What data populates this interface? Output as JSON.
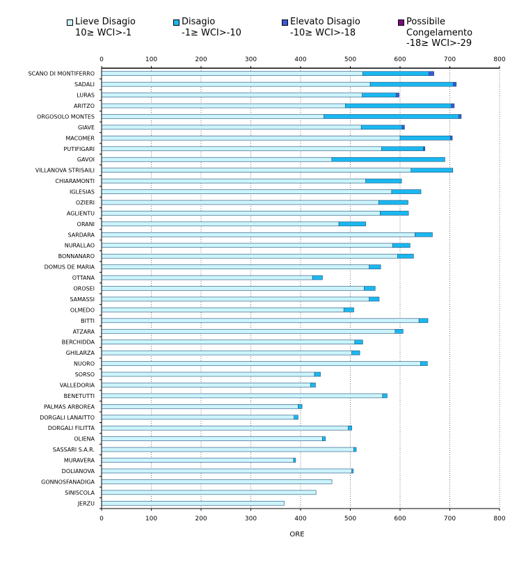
{
  "chart_data": {
    "type": "bar",
    "orientation": "horizontal",
    "stacked": true,
    "xlabel": "ORE",
    "xlim": [
      0,
      800
    ],
    "xticks": [
      0,
      100,
      200,
      300,
      400,
      500,
      600,
      700,
      800
    ],
    "grid": "vertical dotted",
    "legend": [
      {
        "name": "Lieve Disagio",
        "range": "10≥ WCI>-1",
        "range2": "",
        "color": "#ccf4fc"
      },
      {
        "name": "Disagio",
        "range": "-1≥ WCI>-10",
        "range2": "",
        "color": "#1ab8f0"
      },
      {
        "name": "Elevato Disagio",
        "range": "-10≥ WCI>-18",
        "range2": "",
        "color": "#3a5ad8"
      },
      {
        "name": "Possibile",
        "range": "Congelamento",
        "range2": "-18≥ WCI>-29",
        "color": "#7a0c7e"
      }
    ],
    "categories": [
      "SCANO DI MONTIFERRO",
      "SADALI",
      "LURAS",
      "ARITZO",
      "ORGOSOLO MONTES",
      "GIAVE",
      "MACOMER",
      "PUTIFIGARI",
      "GAVOI",
      "VILLANOVA STRISAILI",
      "CHIARAMONTI",
      "IGLESIAS",
      "OZIERI",
      "AGLIENTU",
      "ORANI",
      "SARDARA",
      "NURALLAO",
      "BONNANARO",
      "DOMUS DE MARIA",
      "OTTANA",
      "OROSEI",
      "SAMASSI",
      "OLMEDO",
      "BITTI",
      "ATZARA",
      "BERCHIDDA",
      "GHILARZA",
      "NUORO",
      "SORSO",
      "VALLEDORIA",
      "BENETUTTI",
      "PALMAS ARBOREA",
      "DORGALI LANAITTO",
      "DORGALI FILITTA",
      "OLIENA",
      "SASSARI S.A.R.",
      "MURAVERA",
      "DOLIANOVA",
      "GONNOSFANADIGA",
      "SINISCOLA",
      "JERZU"
    ],
    "series": [
      {
        "name": "Lieve Disagio",
        "values": [
          525,
          540,
          524,
          490,
          447,
          522,
          600,
          563,
          463,
          622,
          531,
          583,
          557,
          560,
          477,
          630,
          585,
          595,
          538,
          424,
          528,
          538,
          487,
          638,
          590,
          509,
          503,
          641,
          428,
          420,
          565,
          395,
          387,
          496,
          444,
          507,
          386,
          503,
          463,
          431,
          367
        ]
      },
      {
        "name": "Disagio",
        "values": [
          133,
          167,
          68,
          213,
          271,
          82,
          101,
          84,
          227,
          84,
          72,
          59,
          59,
          57,
          54,
          35,
          35,
          32,
          23,
          20,
          22,
          20,
          20,
          18,
          16,
          16,
          16,
          14,
          12,
          10,
          9,
          8,
          8,
          7,
          6,
          5,
          4,
          3,
          0,
          0,
          0
        ]
      },
      {
        "name": "Elevato Disagio",
        "values": [
          10,
          6,
          6,
          6,
          5,
          5,
          4,
          3,
          0,
          0,
          0,
          0,
          0,
          0,
          0,
          0,
          0,
          0,
          0,
          0,
          0,
          0,
          0,
          0,
          0,
          0,
          0,
          0,
          0,
          0,
          0,
          0,
          0,
          0,
          0,
          0,
          0,
          0,
          0,
          0,
          0
        ]
      },
      {
        "name": "Possibile Congelamento",
        "values": [
          0,
          0,
          0,
          0,
          0,
          0,
          0,
          0,
          0,
          0,
          0,
          0,
          0,
          0,
          0,
          0,
          0,
          0,
          0,
          0,
          0,
          0,
          0,
          0,
          0,
          0,
          0,
          0,
          0,
          0,
          0,
          0,
          0,
          0,
          0,
          0,
          0,
          0,
          0,
          0,
          0
        ]
      }
    ]
  }
}
